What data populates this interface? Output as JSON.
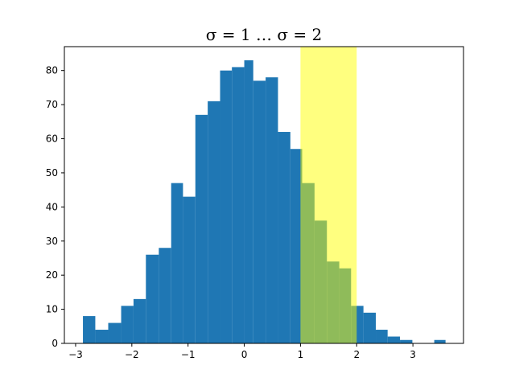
{
  "chart_data": {
    "type": "bar",
    "title": "σ = 1 … σ = 2",
    "xlabel": "",
    "ylabel": "",
    "xlim": [
      -3.2,
      3.9
    ],
    "ylim": [
      0,
      87
    ],
    "grid": false,
    "bar_color": "#1f77b4",
    "highlight_color": "#ffff00",
    "highlight_opacity": 0.5,
    "highlight_span": {
      "x0": 1,
      "x1": 2
    },
    "bins": [
      {
        "x0": -2.87,
        "x1": -2.65,
        "count": 8
      },
      {
        "x0": -2.65,
        "x1": -2.42,
        "count": 4
      },
      {
        "x0": -2.42,
        "x1": -2.19,
        "count": 6
      },
      {
        "x0": -2.19,
        "x1": -1.97,
        "count": 11
      },
      {
        "x0": -1.97,
        "x1": -1.75,
        "count": 13
      },
      {
        "x0": -1.75,
        "x1": -1.52,
        "count": 26
      },
      {
        "x0": -1.52,
        "x1": -1.3,
        "count": 28
      },
      {
        "x0": -1.3,
        "x1": -1.09,
        "count": 47
      },
      {
        "x0": -1.09,
        "x1": -0.87,
        "count": 43
      },
      {
        "x0": -0.87,
        "x1": -0.65,
        "count": 67
      },
      {
        "x0": -0.65,
        "x1": -0.43,
        "count": 71
      },
      {
        "x0": -0.43,
        "x1": -0.22,
        "count": 80
      },
      {
        "x0": -0.22,
        "x1": 0.0,
        "count": 81
      },
      {
        "x0": 0.0,
        "x1": 0.16,
        "count": 83
      },
      {
        "x0": 0.16,
        "x1": 0.38,
        "count": 77
      },
      {
        "x0": 0.38,
        "x1": 0.6,
        "count": 78
      },
      {
        "x0": 0.6,
        "x1": 0.82,
        "count": 62
      },
      {
        "x0": 0.82,
        "x1": 1.03,
        "count": 57
      },
      {
        "x0": 1.03,
        "x1": 1.25,
        "count": 47
      },
      {
        "x0": 1.25,
        "x1": 1.47,
        "count": 36
      },
      {
        "x0": 1.47,
        "x1": 1.69,
        "count": 24
      },
      {
        "x0": 1.69,
        "x1": 1.9,
        "count": 22
      },
      {
        "x0": 1.9,
        "x1": 2.12,
        "count": 11
      },
      {
        "x0": 2.12,
        "x1": 2.34,
        "count": 9
      },
      {
        "x0": 2.34,
        "x1": 2.55,
        "count": 4
      },
      {
        "x0": 2.55,
        "x1": 2.77,
        "count": 2
      },
      {
        "x0": 2.77,
        "x1": 2.99,
        "count": 1
      },
      {
        "x0": 3.38,
        "x1": 3.58,
        "count": 1
      }
    ],
    "x_ticks": [
      {
        "value": -3,
        "label": "−3"
      },
      {
        "value": -2,
        "label": "−2"
      },
      {
        "value": -1,
        "label": "−1"
      },
      {
        "value": 0,
        "label": "0"
      },
      {
        "value": 1,
        "label": "1"
      },
      {
        "value": 2,
        "label": "2"
      },
      {
        "value": 3,
        "label": "3"
      }
    ],
    "y_ticks": [
      {
        "value": 0,
        "label": "0"
      },
      {
        "value": 10,
        "label": "10"
      },
      {
        "value": 20,
        "label": "20"
      },
      {
        "value": 30,
        "label": "30"
      },
      {
        "value": 40,
        "label": "40"
      },
      {
        "value": 50,
        "label": "50"
      },
      {
        "value": 60,
        "label": "60"
      },
      {
        "value": 70,
        "label": "70"
      },
      {
        "value": 80,
        "label": "80"
      }
    ]
  }
}
